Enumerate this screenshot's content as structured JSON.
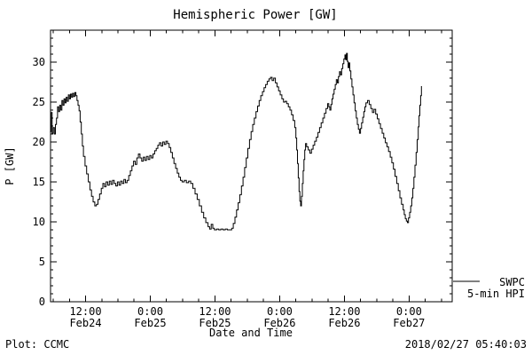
{
  "page": {
    "footer_left": "Plot: CCMC",
    "footer_right": "2018/02/27 05:40:03"
  },
  "chart_data": {
    "type": "line",
    "title": "Hemispheric Power [GW]",
    "xlabel": "Date and Time",
    "ylabel": "P [GW]",
    "legend": [
      "SWPC",
      "5-min HPI"
    ],
    "line_color": "#000000",
    "background": "#ffffff",
    "grid": false,
    "ylim": [
      0,
      34
    ],
    "y_ticks": [
      0,
      5,
      10,
      15,
      20,
      25,
      30
    ],
    "y_minor_step": 1,
    "xlim_hours_from_feb24_00": [
      5.5,
      80
    ],
    "x_minor_step_hours": 3,
    "x_ticks": [
      {
        "hour": 12,
        "time": "12:00",
        "date": "Feb24"
      },
      {
        "hour": 24,
        "time": "0:00",
        "date": "Feb25"
      },
      {
        "hour": 36,
        "time": "12:00",
        "date": "Feb25"
      },
      {
        "hour": 48,
        "time": "0:00",
        "date": "Feb26"
      },
      {
        "hour": 60,
        "time": "12:00",
        "date": "Feb26"
      },
      {
        "hour": 72,
        "time": "0:00",
        "date": "Feb27"
      }
    ],
    "points_hour_gw": [
      [
        5.4,
        21.3
      ],
      [
        5.6,
        23.7
      ],
      [
        5.8,
        21.1
      ],
      [
        6.0,
        21.8
      ],
      [
        6.2,
        21.0
      ],
      [
        6.4,
        22.2
      ],
      [
        6.6,
        23.0
      ],
      [
        6.8,
        24.4
      ],
      [
        7.0,
        23.8
      ],
      [
        7.2,
        24.6
      ],
      [
        7.4,
        24.0
      ],
      [
        7.6,
        25.2
      ],
      [
        7.8,
        24.6
      ],
      [
        8.0,
        25.4
      ],
      [
        8.2,
        24.9
      ],
      [
        8.4,
        25.6
      ],
      [
        8.6,
        25.1
      ],
      [
        8.8,
        25.9
      ],
      [
        9.0,
        25.4
      ],
      [
        9.2,
        26.0
      ],
      [
        9.4,
        25.6
      ],
      [
        9.6,
        26.1
      ],
      [
        9.8,
        25.7
      ],
      [
        10.0,
        26.2
      ],
      [
        10.2,
        25.8
      ],
      [
        10.4,
        25.2
      ],
      [
        10.6,
        24.6
      ],
      [
        10.8,
        23.9
      ],
      [
        11.0,
        22.5
      ],
      [
        11.2,
        21.0
      ],
      [
        11.4,
        19.5
      ],
      [
        11.6,
        18.2
      ],
      [
        11.9,
        17.0
      ],
      [
        12.2,
        16.0
      ],
      [
        12.5,
        15.0
      ],
      [
        12.8,
        14.0
      ],
      [
        13.1,
        13.2
      ],
      [
        13.4,
        12.5
      ],
      [
        13.7,
        12.0
      ],
      [
        14.0,
        12.2
      ],
      [
        14.3,
        12.8
      ],
      [
        14.6,
        13.5
      ],
      [
        14.9,
        14.2
      ],
      [
        15.2,
        14.8
      ],
      [
        15.5,
        14.4
      ],
      [
        15.8,
        15.0
      ],
      [
        16.1,
        14.6
      ],
      [
        16.4,
        15.1
      ],
      [
        16.7,
        14.7
      ],
      [
        17.0,
        15.2
      ],
      [
        17.3,
        14.8
      ],
      [
        17.6,
        14.5
      ],
      [
        17.9,
        15.0
      ],
      [
        18.2,
        14.6
      ],
      [
        18.5,
        15.1
      ],
      [
        18.8,
        14.8
      ],
      [
        19.1,
        15.3
      ],
      [
        19.4,
        14.9
      ],
      [
        19.7,
        15.2
      ],
      [
        20.0,
        15.8
      ],
      [
        20.3,
        16.4
      ],
      [
        20.6,
        17.0
      ],
      [
        20.9,
        17.6
      ],
      [
        21.2,
        17.2
      ],
      [
        21.5,
        18.0
      ],
      [
        21.8,
        18.5
      ],
      [
        22.1,
        18.0
      ],
      [
        22.4,
        17.6
      ],
      [
        22.7,
        18.1
      ],
      [
        23.0,
        17.7
      ],
      [
        23.3,
        18.2
      ],
      [
        23.6,
        17.8
      ],
      [
        23.9,
        18.3
      ],
      [
        24.2,
        18.0
      ],
      [
        24.5,
        18.5
      ],
      [
        24.8,
        18.9
      ],
      [
        25.1,
        19.2
      ],
      [
        25.4,
        19.6
      ],
      [
        25.7,
        19.9
      ],
      [
        26.0,
        19.5
      ],
      [
        26.3,
        20.0
      ],
      [
        26.6,
        19.7
      ],
      [
        26.9,
        20.1
      ],
      [
        27.2,
        19.8
      ],
      [
        27.5,
        19.3
      ],
      [
        27.8,
        18.7
      ],
      [
        28.1,
        18.0
      ],
      [
        28.4,
        17.3
      ],
      [
        28.7,
        16.7
      ],
      [
        29.0,
        16.1
      ],
      [
        29.3,
        15.6
      ],
      [
        29.6,
        15.2
      ],
      [
        29.9,
        15.0
      ],
      [
        30.3,
        15.2
      ],
      [
        30.7,
        14.9
      ],
      [
        31.1,
        15.1
      ],
      [
        31.5,
        14.8
      ],
      [
        31.9,
        14.2
      ],
      [
        32.3,
        13.5
      ],
      [
        32.7,
        12.8
      ],
      [
        33.1,
        12.0
      ],
      [
        33.5,
        11.2
      ],
      [
        33.9,
        10.5
      ],
      [
        34.3,
        9.9
      ],
      [
        34.7,
        9.4
      ],
      [
        35.0,
        9.1
      ],
      [
        35.3,
        9.7
      ],
      [
        35.6,
        9.2
      ],
      [
        35.9,
        9.0
      ],
      [
        36.3,
        9.1
      ],
      [
        36.7,
        9.0
      ],
      [
        37.1,
        9.1
      ],
      [
        37.5,
        9.0
      ],
      [
        37.9,
        9.1
      ],
      [
        38.3,
        9.0
      ],
      [
        38.7,
        9.0
      ],
      [
        39.1,
        9.2
      ],
      [
        39.4,
        9.8
      ],
      [
        39.7,
        10.6
      ],
      [
        40.0,
        11.5
      ],
      [
        40.3,
        12.4
      ],
      [
        40.6,
        13.4
      ],
      [
        40.9,
        14.5
      ],
      [
        41.2,
        15.6
      ],
      [
        41.5,
        16.8
      ],
      [
        41.8,
        18.0
      ],
      [
        42.1,
        19.2
      ],
      [
        42.4,
        20.3
      ],
      [
        42.7,
        21.3
      ],
      [
        43.0,
        22.2
      ],
      [
        43.3,
        23.0
      ],
      [
        43.6,
        23.8
      ],
      [
        43.9,
        24.5
      ],
      [
        44.2,
        25.2
      ],
      [
        44.5,
        25.8
      ],
      [
        44.8,
        26.3
      ],
      [
        45.1,
        26.8
      ],
      [
        45.4,
        27.2
      ],
      [
        45.7,
        27.6
      ],
      [
        46.0,
        27.9
      ],
      [
        46.3,
        28.1
      ],
      [
        46.6,
        27.7
      ],
      [
        46.9,
        28.0
      ],
      [
        47.2,
        27.4
      ],
      [
        47.5,
        26.9
      ],
      [
        47.8,
        26.4
      ],
      [
        48.1,
        25.9
      ],
      [
        48.4,
        25.4
      ],
      [
        48.7,
        25.0
      ],
      [
        49.0,
        25.1
      ],
      [
        49.3,
        24.8
      ],
      [
        49.6,
        24.4
      ],
      [
        49.9,
        24.0
      ],
      [
        50.2,
        23.4
      ],
      [
        50.5,
        22.7
      ],
      [
        50.8,
        21.8
      ],
      [
        51.0,
        20.5
      ],
      [
        51.15,
        19.0
      ],
      [
        51.3,
        17.3
      ],
      [
        51.45,
        15.5
      ],
      [
        51.6,
        13.8
      ],
      [
        51.75,
        12.6
      ],
      [
        51.9,
        12.0
      ],
      [
        52.05,
        13.2
      ],
      [
        52.2,
        14.8
      ],
      [
        52.35,
        16.4
      ],
      [
        52.5,
        17.8
      ],
      [
        52.65,
        19.0
      ],
      [
        52.8,
        19.8
      ],
      [
        53.0,
        19.4
      ],
      [
        53.3,
        19.0
      ],
      [
        53.6,
        18.6
      ],
      [
        53.9,
        19.1
      ],
      [
        54.2,
        19.6
      ],
      [
        54.5,
        20.1
      ],
      [
        54.8,
        20.6
      ],
      [
        55.1,
        21.2
      ],
      [
        55.4,
        21.8
      ],
      [
        55.7,
        22.4
      ],
      [
        56.0,
        23.0
      ],
      [
        56.3,
        23.6
      ],
      [
        56.6,
        24.2
      ],
      [
        56.9,
        24.8
      ],
      [
        57.1,
        24.4
      ],
      [
        57.3,
        24.0
      ],
      [
        57.5,
        24.7
      ],
      [
        57.7,
        25.4
      ],
      [
        57.9,
        26.0
      ],
      [
        58.1,
        26.6
      ],
      [
        58.3,
        27.2
      ],
      [
        58.5,
        27.8
      ],
      [
        58.7,
        27.4
      ],
      [
        58.9,
        28.2
      ],
      [
        59.1,
        28.8
      ],
      [
        59.3,
        28.4
      ],
      [
        59.5,
        29.2
      ],
      [
        59.7,
        29.8
      ],
      [
        59.9,
        30.4
      ],
      [
        60.1,
        30.9
      ],
      [
        60.25,
        30.3
      ],
      [
        60.4,
        31.1
      ],
      [
        60.55,
        30.1
      ],
      [
        60.7,
        29.3
      ],
      [
        60.85,
        29.9
      ],
      [
        61.0,
        28.9
      ],
      [
        61.2,
        27.9
      ],
      [
        61.4,
        26.9
      ],
      [
        61.6,
        25.9
      ],
      [
        61.8,
        24.9
      ],
      [
        62.0,
        23.9
      ],
      [
        62.2,
        23.0
      ],
      [
        62.4,
        22.2
      ],
      [
        62.6,
        21.6
      ],
      [
        62.8,
        21.1
      ],
      [
        63.0,
        21.7
      ],
      [
        63.2,
        22.4
      ],
      [
        63.4,
        23.1
      ],
      [
        63.6,
        23.8
      ],
      [
        63.8,
        24.4
      ],
      [
        64.0,
        24.9
      ],
      [
        64.3,
        25.2
      ],
      [
        64.6,
        24.7
      ],
      [
        64.9,
        24.2
      ],
      [
        65.2,
        23.7
      ],
      [
        65.5,
        24.1
      ],
      [
        65.8,
        23.5
      ],
      [
        66.1,
        22.9
      ],
      [
        66.4,
        22.3
      ],
      [
        66.7,
        21.7
      ],
      [
        67.0,
        21.1
      ],
      [
        67.3,
        20.5
      ],
      [
        67.6,
        19.9
      ],
      [
        67.9,
        19.4
      ],
      [
        68.2,
        18.8
      ],
      [
        68.5,
        18.1
      ],
      [
        68.8,
        17.4
      ],
      [
        69.1,
        16.6
      ],
      [
        69.4,
        15.7
      ],
      [
        69.7,
        14.8
      ],
      [
        70.0,
        13.9
      ],
      [
        70.3,
        13.0
      ],
      [
        70.6,
        12.2
      ],
      [
        70.9,
        11.5
      ],
      [
        71.1,
        10.9
      ],
      [
        71.3,
        10.4
      ],
      [
        71.5,
        10.1
      ],
      [
        71.7,
        9.9
      ],
      [
        71.9,
        10.5
      ],
      [
        72.1,
        11.2
      ],
      [
        72.3,
        12.0
      ],
      [
        72.5,
        13.0
      ],
      [
        72.7,
        14.2
      ],
      [
        72.9,
        15.6
      ],
      [
        73.1,
        17.1
      ],
      [
        73.3,
        18.7
      ],
      [
        73.5,
        20.3
      ],
      [
        73.7,
        21.9
      ],
      [
        73.85,
        23.3
      ],
      [
        74.0,
        24.6
      ],
      [
        74.15,
        25.8
      ],
      [
        74.3,
        27.0
      ]
    ]
  }
}
